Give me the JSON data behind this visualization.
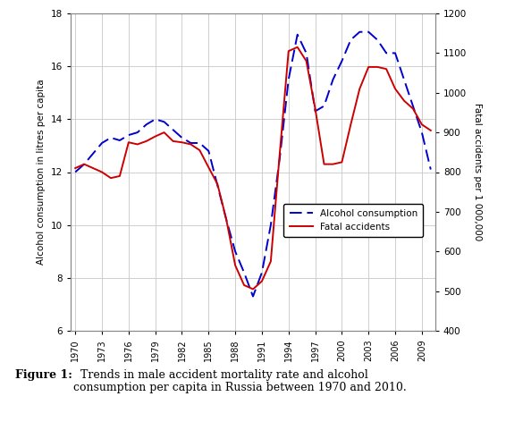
{
  "years": [
    1970,
    1971,
    1972,
    1973,
    1974,
    1975,
    1976,
    1977,
    1978,
    1979,
    1980,
    1981,
    1982,
    1983,
    1984,
    1985,
    1986,
    1987,
    1988,
    1989,
    1990,
    1991,
    1992,
    1993,
    1994,
    1995,
    1996,
    1997,
    1998,
    1999,
    2000,
    2001,
    2002,
    2003,
    2004,
    2005,
    2006,
    2007,
    2008,
    2009,
    2010
  ],
  "alcohol": [
    12.0,
    12.3,
    12.7,
    13.1,
    13.3,
    13.2,
    13.4,
    13.5,
    13.8,
    14.0,
    13.9,
    13.6,
    13.3,
    13.1,
    13.1,
    12.8,
    11.5,
    10.2,
    9.0,
    8.2,
    7.3,
    8.2,
    10.0,
    12.5,
    15.5,
    17.2,
    16.5,
    14.3,
    14.5,
    15.5,
    16.2,
    17.0,
    17.3,
    17.3,
    17.0,
    16.5,
    16.5,
    15.5,
    14.5,
    13.5,
    12.1
  ],
  "fatal": [
    810,
    820,
    810,
    800,
    785,
    790,
    875,
    870,
    878,
    890,
    900,
    878,
    875,
    870,
    855,
    812,
    770,
    680,
    565,
    515,
    505,
    525,
    575,
    845,
    1105,
    1115,
    1080,
    960,
    820,
    820,
    825,
    920,
    1010,
    1065,
    1065,
    1060,
    1010,
    980,
    960,
    920,
    905
  ],
  "alcohol_color": "#0000cc",
  "fatal_color": "#cc0000",
  "ylim_left": [
    6,
    18
  ],
  "ylim_right": [
    400,
    1200
  ],
  "yticks_left": [
    6,
    8,
    10,
    12,
    14,
    16,
    18
  ],
  "yticks_right": [
    400,
    500,
    600,
    700,
    800,
    900,
    1000,
    1100,
    1200
  ],
  "xtick_years": [
    1970,
    1973,
    1976,
    1979,
    1982,
    1985,
    1988,
    1991,
    1994,
    1997,
    2000,
    2003,
    2006,
    2009
  ],
  "ylabel_left": "Alcohol consumption in litres per capita",
  "ylabel_right": "Fatal accidents per 1 000,000",
  "legend_alcohol": "Alcohol consumption",
  "legend_fatal": "Fatal accidents",
  "caption_bold": "Figure 1:",
  "caption_normal": "  Trends in male accident mortality rate and alcohol\nconsumption per capita in Russia between 1970 and 2010.",
  "background_color": "#ffffff",
  "plot_bg_color": "#ffffff",
  "grid_color": "#c8c8c8",
  "border_color": "#888888"
}
